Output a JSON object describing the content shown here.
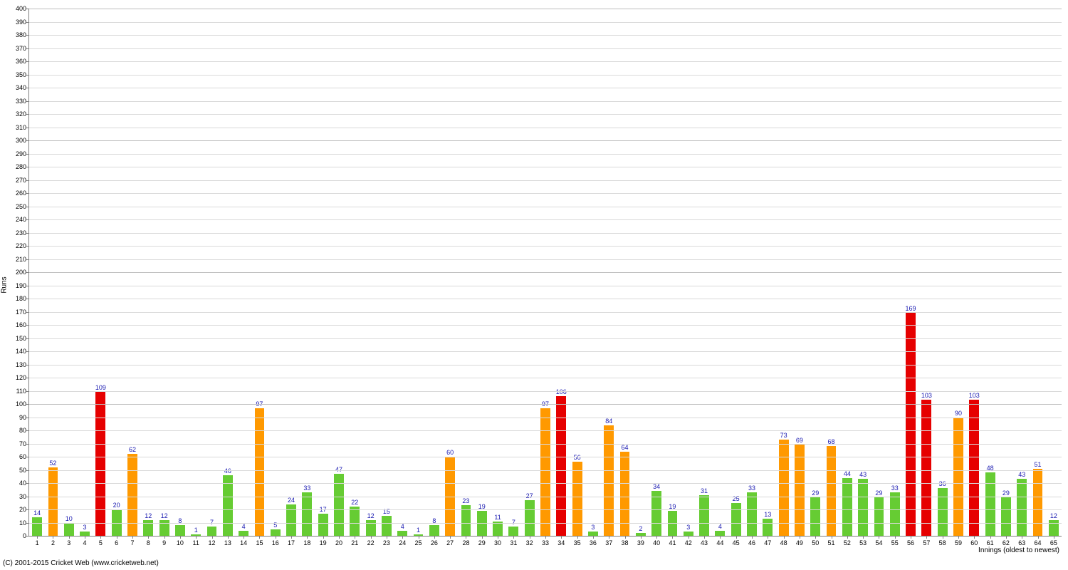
{
  "chart": {
    "type": "bar",
    "y_title": "Runs",
    "x_title": "Innings (oldest to newest)",
    "copyright": "(C) 2001-2015 Cricket Web (www.cricketweb.net)",
    "background_color": "#ffffff",
    "axis_color": "#7f7f7f",
    "grid_color": "#d9d9d9",
    "grid_color_strong": "#bfbfbf",
    "value_label_color": "#1818b0",
    "tick_label_color": "#000000",
    "ylim": [
      0,
      400
    ],
    "ytick_step": 10,
    "ytick_strong_every": 10,
    "bar_width_ratio": 0.62,
    "colors": {
      "low": "#66cc33",
      "mid": "#ff9900",
      "high": "#e60000"
    },
    "color_thresholds": {
      "mid_min": 50,
      "high_min": 100
    },
    "label_fontsize": 9,
    "data": [
      {
        "x": 1,
        "v": 14
      },
      {
        "x": 2,
        "v": 52
      },
      {
        "x": 3,
        "v": 10
      },
      {
        "x": 4,
        "v": 3
      },
      {
        "x": 5,
        "v": 109
      },
      {
        "x": 6,
        "v": 20
      },
      {
        "x": 7,
        "v": 62
      },
      {
        "x": 8,
        "v": 12
      },
      {
        "x": 9,
        "v": 12
      },
      {
        "x": 10,
        "v": 8
      },
      {
        "x": 11,
        "v": 1
      },
      {
        "x": 12,
        "v": 7
      },
      {
        "x": 13,
        "v": 46
      },
      {
        "x": 14,
        "v": 4
      },
      {
        "x": 15,
        "v": 97
      },
      {
        "x": 16,
        "v": 5
      },
      {
        "x": 17,
        "v": 24
      },
      {
        "x": 18,
        "v": 33
      },
      {
        "x": 19,
        "v": 17
      },
      {
        "x": 20,
        "v": 47
      },
      {
        "x": 21,
        "v": 22
      },
      {
        "x": 22,
        "v": 12
      },
      {
        "x": 23,
        "v": 15
      },
      {
        "x": 24,
        "v": 4
      },
      {
        "x": 25,
        "v": 1
      },
      {
        "x": 26,
        "v": 8
      },
      {
        "x": 27,
        "v": 60
      },
      {
        "x": 28,
        "v": 23
      },
      {
        "x": 29,
        "v": 19
      },
      {
        "x": 30,
        "v": 11
      },
      {
        "x": 31,
        "v": 7
      },
      {
        "x": 32,
        "v": 27
      },
      {
        "x": 33,
        "v": 97
      },
      {
        "x": 34,
        "v": 106
      },
      {
        "x": 35,
        "v": 56
      },
      {
        "x": 36,
        "v": 3
      },
      {
        "x": 37,
        "v": 84
      },
      {
        "x": 38,
        "v": 64
      },
      {
        "x": 39,
        "v": 2
      },
      {
        "x": 40,
        "v": 34
      },
      {
        "x": 41,
        "v": 19
      },
      {
        "x": 42,
        "v": 3
      },
      {
        "x": 43,
        "v": 31
      },
      {
        "x": 44,
        "v": 4
      },
      {
        "x": 45,
        "v": 25
      },
      {
        "x": 46,
        "v": 33
      },
      {
        "x": 47,
        "v": 13
      },
      {
        "x": 48,
        "v": 73
      },
      {
        "x": 49,
        "v": 69
      },
      {
        "x": 50,
        "v": 29
      },
      {
        "x": 51,
        "v": 68
      },
      {
        "x": 52,
        "v": 44
      },
      {
        "x": 53,
        "v": 43
      },
      {
        "x": 54,
        "v": 29
      },
      {
        "x": 55,
        "v": 33
      },
      {
        "x": 56,
        "v": 169
      },
      {
        "x": 57,
        "v": 103
      },
      {
        "x": 58,
        "v": 36
      },
      {
        "x": 59,
        "v": 90
      },
      {
        "x": 60,
        "v": 103
      },
      {
        "x": 61,
        "v": 48
      },
      {
        "x": 62,
        "v": 29
      },
      {
        "x": 63,
        "v": 43
      },
      {
        "x": 64,
        "v": 51
      },
      {
        "x": 65,
        "v": 12
      }
    ]
  }
}
